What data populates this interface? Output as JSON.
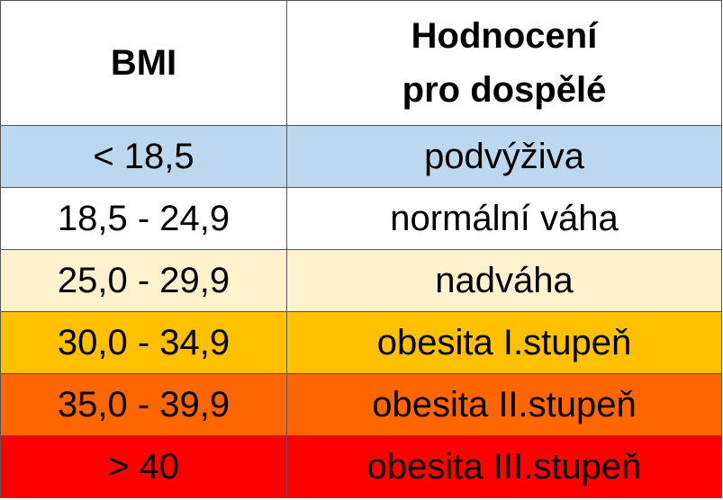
{
  "header": {
    "bmi_label": "BMI",
    "evaluation_line1": "Hodnocení",
    "evaluation_line2": "pro dospělé"
  },
  "rows": [
    {
      "bmi": "< 18,5",
      "evaluation": "podvýživa",
      "color": "#BDD7EE"
    },
    {
      "bmi": "18,5 - 24,9",
      "evaluation": "normální váha",
      "color": "#FFFFFF"
    },
    {
      "bmi": "25,0 - 29,9",
      "evaluation": "nadváha",
      "color": "#FFF2CC"
    },
    {
      "bmi": "30,0 - 34,9",
      "evaluation": "obesita I.stupeň",
      "color": "#FFC000"
    },
    {
      "bmi": "35,0 - 39,9",
      "evaluation": "obesita II.stupeň",
      "color": "#FF6600"
    },
    {
      "bmi": "> 40",
      "evaluation": "obesita III.stupeň",
      "color": "#FF0000"
    }
  ]
}
